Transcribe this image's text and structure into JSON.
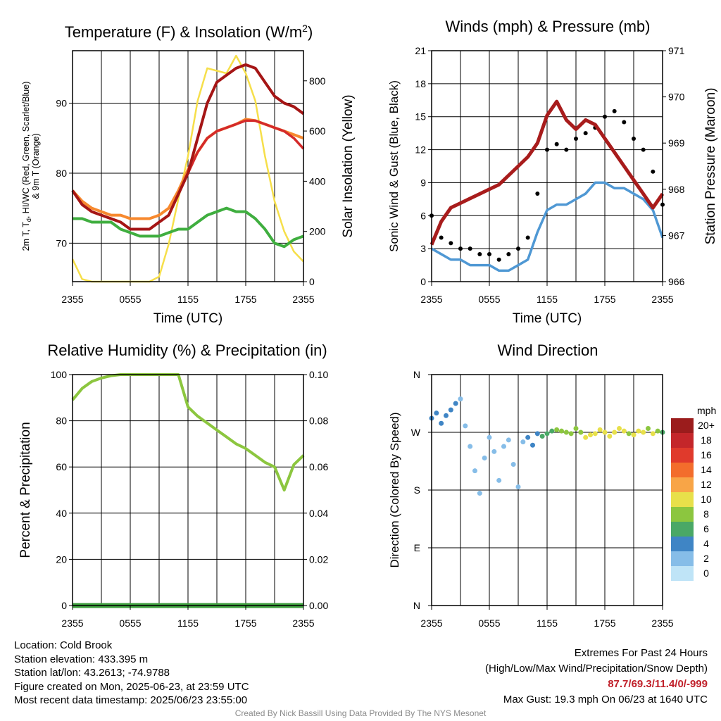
{
  "colors": {
    "t2m": "#d42a2a",
    "td": "#3fae3f",
    "hi": "#a51515",
    "t9m": "#f7892e",
    "solar": "#f6df4a",
    "wind": "#4f98d4",
    "gust": "#000000",
    "pressure": "#a81c1c",
    "rh": "#8cc63f",
    "precip": "#3d9e3d"
  },
  "panels": {
    "temp": {
      "title_main": "Temperature (F) & Insolation (W/m",
      "title_sup": "2",
      "title_end": ")",
      "ylabel_lines": [
        "2m T, T",
        "d",
        ", HI/WC (Red, Green, Scarlet/Blue)",
        "& 9m T (Orange)"
      ],
      "ylabel2": "Solar Insolation (Yellow)",
      "xlabel": "Time (UTC)"
    },
    "wind": {
      "title": "Winds (mph) & Pressure (mb)",
      "ylabel": "Sonic Wind & Gust (Blue, Black)",
      "ylabel2": "Station Pressure (Maroon)",
      "xlabel": "Time (UTC)"
    },
    "rh": {
      "title": "Relative Humidity (%) & Precipitation (in)",
      "ylabel": "Percent & Precipitation"
    },
    "dir": {
      "title": "Wind Direction",
      "ylabel": "Direction (Colored By Speed)",
      "legend_unit": "mph"
    }
  },
  "chart_data": [
    {
      "type": "line",
      "title": "Temperature (F) & Insolation (W/m2)",
      "xlabel": "Time (UTC)",
      "ylabel": "2m T, Td, HI/WC (Red, Green, Scarlet/Blue) & 9m T (Orange)",
      "ylabel2": "Solar Insolation (Yellow)",
      "x_ticks": [
        "2355",
        "0555",
        "1155",
        "1755",
        "2355"
      ],
      "ylim": [
        64.5,
        97.5
      ],
      "y_ticks": [
        70,
        80,
        90
      ],
      "y2lim": [
        0,
        920
      ],
      "y2_ticks": [
        0,
        200,
        400,
        600,
        800
      ],
      "x": [
        0,
        1,
        2,
        3,
        4,
        5,
        6,
        7,
        8,
        9,
        10,
        11,
        12,
        13,
        14,
        15,
        16,
        17,
        18,
        19,
        20,
        21,
        22,
        23,
        24
      ],
      "series": [
        {
          "name": "2m T",
          "color": "#d42a2a",
          "values": [
            77.5,
            75.5,
            74.5,
            74,
            73.5,
            73,
            72,
            72,
            72,
            73,
            74,
            77,
            80,
            83,
            85,
            86,
            86.5,
            87,
            87.5,
            87.5,
            87,
            86.5,
            86,
            85,
            83.5
          ]
        },
        {
          "name": "Td",
          "color": "#3fae3f",
          "values": [
            73.5,
            73.5,
            73,
            73,
            73,
            72,
            71.5,
            71,
            71,
            71,
            71.5,
            72,
            72,
            73,
            74,
            74.5,
            75,
            74.5,
            74.5,
            73.5,
            72,
            70,
            69.5,
            70.5,
            71
          ]
        },
        {
          "name": "HI",
          "color": "#a51515",
          "values": [
            77.5,
            75.5,
            74.5,
            74,
            73.5,
            73,
            72,
            72,
            72,
            73,
            74,
            77,
            80,
            85,
            90,
            93,
            94,
            95,
            95.5,
            95,
            93,
            91,
            90,
            89.5,
            88.5
          ]
        },
        {
          "name": "9m T",
          "color": "#f7892e",
          "values": [
            77.5,
            76,
            75,
            74.5,
            74,
            74,
            73.5,
            73.5,
            73.5,
            74,
            75,
            77.5,
            80.5,
            83,
            85,
            86,
            86.5,
            87,
            87.7,
            87.5,
            87,
            86.5,
            86,
            85.5,
            85
          ]
        },
        {
          "name": "Solar",
          "color": "#f6df4a",
          "axis": "y2",
          "values": [
            90,
            10,
            0,
            0,
            0,
            0,
            0,
            0,
            0,
            20,
            150,
            330,
            500,
            720,
            850,
            840,
            830,
            900,
            830,
            720,
            500,
            320,
            200,
            120,
            80
          ]
        }
      ]
    },
    {
      "type": "scatter",
      "title": "Winds (mph) & Pressure (mb)",
      "xlabel": "Time (UTC)",
      "ylabel": "Sonic Wind & Gust (Blue, Black)",
      "ylabel2": "Station Pressure (Maroon)",
      "x_ticks": [
        "2355",
        "0555",
        "1155",
        "1755",
        "2355"
      ],
      "ylim": [
        0,
        21
      ],
      "y_ticks": [
        0,
        3,
        6,
        9,
        12,
        15,
        18,
        21
      ],
      "y2lim": [
        966,
        971
      ],
      "y2_ticks": [
        966,
        967,
        968,
        969,
        970,
        971
      ],
      "x": [
        0,
        1,
        2,
        3,
        4,
        5,
        6,
        7,
        8,
        9,
        10,
        11,
        12,
        13,
        14,
        15,
        16,
        17,
        18,
        19,
        20,
        21,
        22,
        23,
        24
      ],
      "series": [
        {
          "name": "Wind",
          "color": "#4f98d4",
          "values": [
            3,
            2.5,
            2,
            2,
            1.5,
            1.5,
            1.5,
            1,
            1,
            1.5,
            2,
            4.5,
            6.5,
            7,
            7,
            7.5,
            8,
            9,
            9,
            8.5,
            8.5,
            8,
            7.5,
            6.5,
            4
          ]
        },
        {
          "name": "Gust",
          "color": "#000000",
          "values": [
            6,
            4,
            3.5,
            3,
            3,
            2.5,
            2.5,
            2,
            2.5,
            3,
            4,
            8,
            12,
            12.5,
            12,
            13,
            13.5,
            14,
            15,
            15.5,
            14.5,
            13,
            12,
            10,
            7
          ]
        },
        {
          "name": "Pressure",
          "color": "#a81c1c",
          "axis": "y2",
          "values": [
            966.8,
            967.3,
            967.6,
            967.7,
            967.8,
            967.9,
            968.0,
            968.1,
            968.3,
            968.5,
            968.7,
            969.0,
            969.6,
            969.9,
            969.5,
            969.3,
            969.5,
            969.4,
            969.1,
            968.8,
            968.5,
            968.2,
            967.9,
            967.6,
            967.9
          ]
        }
      ]
    },
    {
      "type": "line",
      "title": "Relative Humidity (%) & Precipitation (in)",
      "ylabel": "Percent & Precipitation",
      "x_ticks": [
        "2355",
        "0555",
        "1155",
        "1755",
        "2355"
      ],
      "ylim": [
        0,
        100
      ],
      "y_ticks": [
        0,
        20,
        40,
        60,
        80,
        100
      ],
      "y2lim": [
        0,
        0.1
      ],
      "y2_ticks": [
        "0.00",
        "0.02",
        "0.04",
        "0.06",
        "0.08",
        "0.10"
      ],
      "x": [
        0,
        1,
        2,
        3,
        4,
        5,
        6,
        7,
        8,
        9,
        10,
        11,
        12,
        13,
        14,
        15,
        16,
        17,
        18,
        19,
        20,
        21,
        22,
        23,
        24
      ],
      "series": [
        {
          "name": "RH",
          "color": "#8cc63f",
          "values": [
            89,
            94,
            97,
            98.5,
            99.5,
            100,
            100,
            100,
            100,
            100,
            100,
            100,
            86,
            82,
            79,
            76,
            73,
            70,
            68,
            65,
            62,
            60,
            50,
            61,
            65
          ]
        },
        {
          "name": "Precip",
          "color": "#3d9e3d",
          "axis": "y2",
          "values": [
            0,
            0,
            0,
            0,
            0,
            0,
            0,
            0,
            0,
            0,
            0,
            0,
            0,
            0,
            0,
            0,
            0,
            0,
            0,
            0,
            0,
            0,
            0,
            0,
            0
          ]
        }
      ]
    },
    {
      "type": "scatter",
      "title": "Wind Direction",
      "ylabel": "Direction (Colored By Speed)",
      "x_ticks": [
        "2355",
        "0555",
        "1155",
        "1755",
        "2355"
      ],
      "y_ticks": [
        "N",
        "E",
        "S",
        "W",
        "N"
      ],
      "ylim": [
        0,
        360
      ],
      "legend": {
        "title": "mph",
        "labels": [
          "20+",
          "18",
          "16",
          "14",
          "12",
          "10",
          "8",
          "6",
          "4",
          "2",
          "0"
        ],
        "colors": [
          "#9b1c1c",
          "#c4262a",
          "#e03a2c",
          "#f36d2c",
          "#f8a547",
          "#e8e04a",
          "#8cc63f",
          "#4aa866",
          "#3f85c5",
          "#86bde8",
          "#bfe4f7"
        ]
      },
      "x": [
        0,
        0.5,
        1,
        1.5,
        2,
        2.5,
        3,
        3.5,
        4,
        4.5,
        5,
        5.5,
        6,
        6.5,
        7,
        7.5,
        8,
        8.5,
        9,
        9.5,
        10,
        10.5,
        11,
        11.5,
        12,
        12.5,
        13,
        13.5,
        14,
        14.5,
        15,
        15.5,
        16,
        16.5,
        17,
        17.5,
        18,
        18.5,
        19,
        19.5,
        20,
        20.5,
        21,
        21.5,
        22,
        22.5,
        23,
        23.5,
        24
      ],
      "directions": [
        292,
        300,
        284,
        296,
        305,
        315,
        322,
        280,
        248,
        210,
        175,
        230,
        262,
        240,
        195,
        248,
        258,
        220,
        185,
        255,
        262,
        250,
        268,
        264,
        268,
        272,
        274,
        272,
        270,
        268,
        276,
        270,
        262,
        266,
        268,
        274,
        270,
        264,
        270,
        276,
        272,
        268,
        266,
        272,
        270,
        276,
        268,
        272,
        270
      ],
      "speeds": [
        3,
        4,
        3,
        3,
        3,
        3,
        2,
        2,
        2,
        2,
        1,
        1,
        1,
        1,
        1,
        2,
        2,
        1,
        1,
        2,
        3,
        4,
        4,
        5,
        6,
        6,
        7,
        7,
        8,
        7,
        8,
        8,
        9,
        9,
        10,
        9,
        9,
        10,
        9,
        10,
        9,
        8,
        9,
        10,
        9,
        8,
        9,
        8,
        5
      ]
    }
  ],
  "info_left": [
    "Location: Cold Brook",
    "Station elevation: 433.395 m",
    "Station lat/lon: 43.2613; -74.9788",
    "Figure created on Mon, 2025-06-23, at 23:59 UTC",
    "Most recent data timestamp: 2025/06/23 23:55:00"
  ],
  "extremes": {
    "line1": "Extremes For Past 24 Hours",
    "line2": "(High/Low/Max Wind/Precipitation/Snow Depth)",
    "values": "87.7/69.3/11.4/0/-999",
    "gust": "Max Gust: 19.3 mph On 06/23 at 1640 UTC"
  },
  "credit": "Created By Nick Bassill Using Data Provided By The NYS Mesonet"
}
